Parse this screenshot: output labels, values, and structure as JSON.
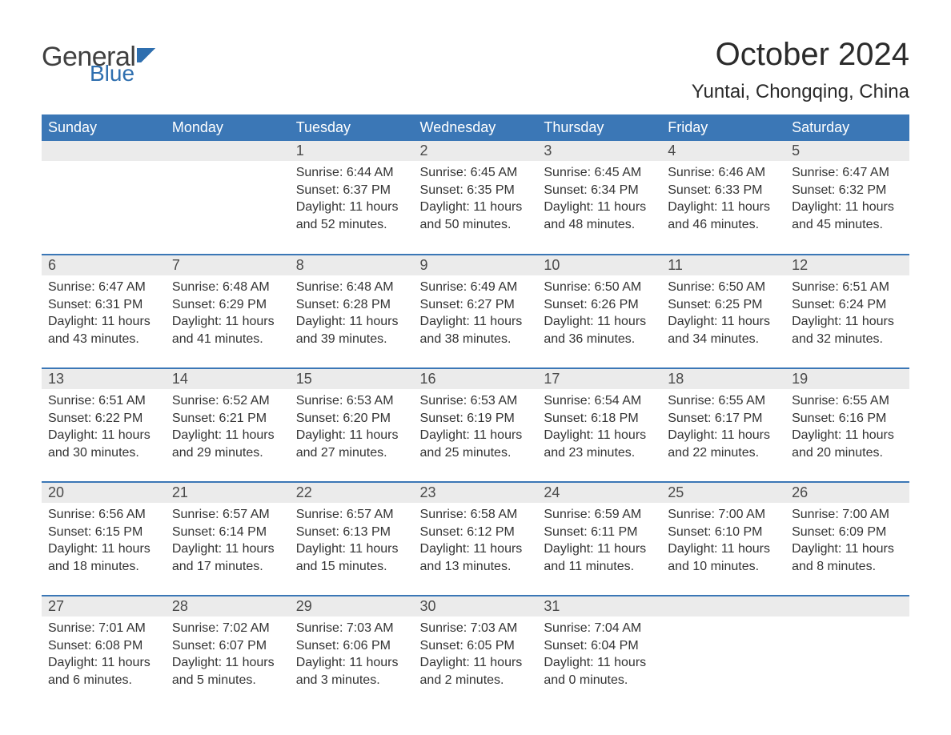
{
  "logo": {
    "general": "General",
    "blue": "Blue"
  },
  "title": "October 2024",
  "location": "Yuntai, Chongqing, China",
  "weekdays": [
    "Sunday",
    "Monday",
    "Tuesday",
    "Wednesday",
    "Thursday",
    "Friday",
    "Saturday"
  ],
  "colors": {
    "header_bg": "#3b77b6",
    "header_text": "#ffffff",
    "daynum_bg": "#ebebeb",
    "row_divider": "#3b77b6",
    "body_text": "#333333",
    "logo_blue": "#2f6faf"
  },
  "weeks": [
    [
      null,
      null,
      {
        "n": "1",
        "sunrise": "Sunrise: 6:44 AM",
        "sunset": "Sunset: 6:37 PM",
        "day1": "Daylight: 11 hours",
        "day2": "and 52 minutes."
      },
      {
        "n": "2",
        "sunrise": "Sunrise: 6:45 AM",
        "sunset": "Sunset: 6:35 PM",
        "day1": "Daylight: 11 hours",
        "day2": "and 50 minutes."
      },
      {
        "n": "3",
        "sunrise": "Sunrise: 6:45 AM",
        "sunset": "Sunset: 6:34 PM",
        "day1": "Daylight: 11 hours",
        "day2": "and 48 minutes."
      },
      {
        "n": "4",
        "sunrise": "Sunrise: 6:46 AM",
        "sunset": "Sunset: 6:33 PM",
        "day1": "Daylight: 11 hours",
        "day2": "and 46 minutes."
      },
      {
        "n": "5",
        "sunrise": "Sunrise: 6:47 AM",
        "sunset": "Sunset: 6:32 PM",
        "day1": "Daylight: 11 hours",
        "day2": "and 45 minutes."
      }
    ],
    [
      {
        "n": "6",
        "sunrise": "Sunrise: 6:47 AM",
        "sunset": "Sunset: 6:31 PM",
        "day1": "Daylight: 11 hours",
        "day2": "and 43 minutes."
      },
      {
        "n": "7",
        "sunrise": "Sunrise: 6:48 AM",
        "sunset": "Sunset: 6:29 PM",
        "day1": "Daylight: 11 hours",
        "day2": "and 41 minutes."
      },
      {
        "n": "8",
        "sunrise": "Sunrise: 6:48 AM",
        "sunset": "Sunset: 6:28 PM",
        "day1": "Daylight: 11 hours",
        "day2": "and 39 minutes."
      },
      {
        "n": "9",
        "sunrise": "Sunrise: 6:49 AM",
        "sunset": "Sunset: 6:27 PM",
        "day1": "Daylight: 11 hours",
        "day2": "and 38 minutes."
      },
      {
        "n": "10",
        "sunrise": "Sunrise: 6:50 AM",
        "sunset": "Sunset: 6:26 PM",
        "day1": "Daylight: 11 hours",
        "day2": "and 36 minutes."
      },
      {
        "n": "11",
        "sunrise": "Sunrise: 6:50 AM",
        "sunset": "Sunset: 6:25 PM",
        "day1": "Daylight: 11 hours",
        "day2": "and 34 minutes."
      },
      {
        "n": "12",
        "sunrise": "Sunrise: 6:51 AM",
        "sunset": "Sunset: 6:24 PM",
        "day1": "Daylight: 11 hours",
        "day2": "and 32 minutes."
      }
    ],
    [
      {
        "n": "13",
        "sunrise": "Sunrise: 6:51 AM",
        "sunset": "Sunset: 6:22 PM",
        "day1": "Daylight: 11 hours",
        "day2": "and 30 minutes."
      },
      {
        "n": "14",
        "sunrise": "Sunrise: 6:52 AM",
        "sunset": "Sunset: 6:21 PM",
        "day1": "Daylight: 11 hours",
        "day2": "and 29 minutes."
      },
      {
        "n": "15",
        "sunrise": "Sunrise: 6:53 AM",
        "sunset": "Sunset: 6:20 PM",
        "day1": "Daylight: 11 hours",
        "day2": "and 27 minutes."
      },
      {
        "n": "16",
        "sunrise": "Sunrise: 6:53 AM",
        "sunset": "Sunset: 6:19 PM",
        "day1": "Daylight: 11 hours",
        "day2": "and 25 minutes."
      },
      {
        "n": "17",
        "sunrise": "Sunrise: 6:54 AM",
        "sunset": "Sunset: 6:18 PM",
        "day1": "Daylight: 11 hours",
        "day2": "and 23 minutes."
      },
      {
        "n": "18",
        "sunrise": "Sunrise: 6:55 AM",
        "sunset": "Sunset: 6:17 PM",
        "day1": "Daylight: 11 hours",
        "day2": "and 22 minutes."
      },
      {
        "n": "19",
        "sunrise": "Sunrise: 6:55 AM",
        "sunset": "Sunset: 6:16 PM",
        "day1": "Daylight: 11 hours",
        "day2": "and 20 minutes."
      }
    ],
    [
      {
        "n": "20",
        "sunrise": "Sunrise: 6:56 AM",
        "sunset": "Sunset: 6:15 PM",
        "day1": "Daylight: 11 hours",
        "day2": "and 18 minutes."
      },
      {
        "n": "21",
        "sunrise": "Sunrise: 6:57 AM",
        "sunset": "Sunset: 6:14 PM",
        "day1": "Daylight: 11 hours",
        "day2": "and 17 minutes."
      },
      {
        "n": "22",
        "sunrise": "Sunrise: 6:57 AM",
        "sunset": "Sunset: 6:13 PM",
        "day1": "Daylight: 11 hours",
        "day2": "and 15 minutes."
      },
      {
        "n": "23",
        "sunrise": "Sunrise: 6:58 AM",
        "sunset": "Sunset: 6:12 PM",
        "day1": "Daylight: 11 hours",
        "day2": "and 13 minutes."
      },
      {
        "n": "24",
        "sunrise": "Sunrise: 6:59 AM",
        "sunset": "Sunset: 6:11 PM",
        "day1": "Daylight: 11 hours",
        "day2": "and 11 minutes."
      },
      {
        "n": "25",
        "sunrise": "Sunrise: 7:00 AM",
        "sunset": "Sunset: 6:10 PM",
        "day1": "Daylight: 11 hours",
        "day2": "and 10 minutes."
      },
      {
        "n": "26",
        "sunrise": "Sunrise: 7:00 AM",
        "sunset": "Sunset: 6:09 PM",
        "day1": "Daylight: 11 hours",
        "day2": "and 8 minutes."
      }
    ],
    [
      {
        "n": "27",
        "sunrise": "Sunrise: 7:01 AM",
        "sunset": "Sunset: 6:08 PM",
        "day1": "Daylight: 11 hours",
        "day2": "and 6 minutes."
      },
      {
        "n": "28",
        "sunrise": "Sunrise: 7:02 AM",
        "sunset": "Sunset: 6:07 PM",
        "day1": "Daylight: 11 hours",
        "day2": "and 5 minutes."
      },
      {
        "n": "29",
        "sunrise": "Sunrise: 7:03 AM",
        "sunset": "Sunset: 6:06 PM",
        "day1": "Daylight: 11 hours",
        "day2": "and 3 minutes."
      },
      {
        "n": "30",
        "sunrise": "Sunrise: 7:03 AM",
        "sunset": "Sunset: 6:05 PM",
        "day1": "Daylight: 11 hours",
        "day2": "and 2 minutes."
      },
      {
        "n": "31",
        "sunrise": "Sunrise: 7:04 AM",
        "sunset": "Sunset: 6:04 PM",
        "day1": "Daylight: 11 hours",
        "day2": "and 0 minutes."
      },
      null,
      null
    ]
  ]
}
